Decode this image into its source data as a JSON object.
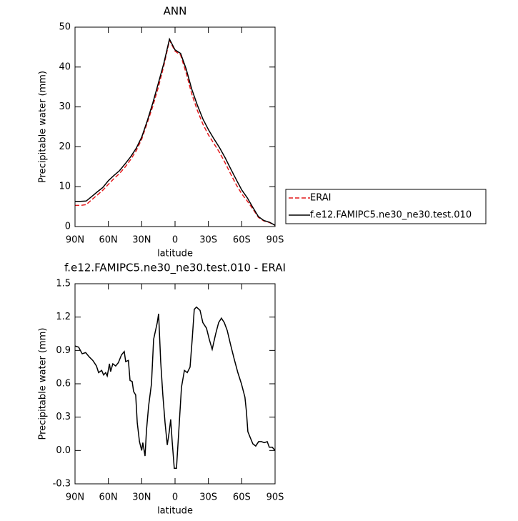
{
  "chart_data": [
    {
      "type": "line",
      "title": "ANN",
      "xlabel": "latitude",
      "ylabel": "Precipitable water (mm)",
      "x": [
        90,
        85,
        80,
        75,
        70,
        65,
        60,
        55,
        50,
        45,
        40,
        35,
        30,
        25,
        20,
        15,
        10,
        5,
        0,
        -5,
        -10,
        -15,
        -20,
        -25,
        -30,
        -35,
        -40,
        -45,
        -50,
        -55,
        -60,
        -65,
        -70,
        -75,
        -80,
        -85,
        -90
      ],
      "series": [
        {
          "name": "ERAI",
          "color": "#e41a1c",
          "style": "dashed",
          "values": [
            5.3,
            5.3,
            5.5,
            6.7,
            7.9,
            9.1,
            10.6,
            12,
            13.3,
            14.9,
            16.8,
            19,
            21.9,
            26,
            30.2,
            35,
            40.4,
            46.7,
            44,
            43,
            38.5,
            33.3,
            29.2,
            25.7,
            23,
            20.8,
            18.6,
            16,
            13.2,
            10.5,
            8.2,
            6.4,
            4.4,
            2.3,
            1.4,
            1,
            0.3
          ]
        },
        {
          "name": "f.e12.FAMIPC5.ne30_ne30.test.010",
          "color": "#000000",
          "style": "solid",
          "values": [
            6.3,
            6.3,
            6.4,
            7.5,
            8.7,
            9.8,
            11.5,
            12.8,
            14,
            15.7,
            17.5,
            19.6,
            22.4,
            26.5,
            31,
            36,
            41,
            47,
            44.3,
            43.4,
            39.5,
            34.5,
            30.5,
            27,
            24.3,
            22,
            19.8,
            17.3,
            14.5,
            11.8,
            9.2,
            7.2,
            4.8,
            2.5,
            1.5,
            1.1,
            0.3
          ]
        }
      ],
      "xlim": [
        90,
        -90
      ],
      "xticks": [
        {
          "value": 90,
          "label": "90N"
        },
        {
          "value": 60,
          "label": "60N"
        },
        {
          "value": 30,
          "label": "30N"
        },
        0,
        {
          "value": -30,
          "label": "30S"
        },
        {
          "value": -60,
          "label": "60S"
        },
        {
          "value": -90,
          "label": "90S"
        }
      ],
      "ylim": [
        0,
        50
      ],
      "yticks": [
        0,
        10,
        20,
        30,
        40,
        50
      ],
      "legend": "outside-right"
    },
    {
      "type": "line",
      "title": "f.e12.FAMIPC5.ne30_ne30.test.010 - ERAI",
      "xlabel": "latitude",
      "ylabel": "Precipitable water (mm)",
      "x": [
        90,
        86.8,
        83.6,
        80.4,
        77,
        74,
        70.7,
        68.8,
        66,
        64.3,
        62.4,
        61,
        59,
        58,
        56,
        53.4,
        51,
        48.2,
        45.7,
        44.4,
        42,
        40.5,
        38.6,
        37.3,
        35.4,
        34,
        32,
        30,
        29,
        27,
        25.7,
        23.8,
        21.2,
        19.3,
        16,
        14.8,
        12.9,
        11,
        9,
        7,
        5.2,
        3.9,
        2.6,
        0.7,
        -1.3,
        -3.2,
        -5.8,
        -8.4,
        -11,
        -13.5,
        -15.4,
        -17.3,
        -19.3,
        -22.5,
        -25,
        -28.3,
        -30.8,
        -33.4,
        -36.6,
        -39.2,
        -41.7,
        -44.3,
        -46.9,
        -50,
        -53.3,
        -56.5,
        -59.7,
        -62.9,
        -64.2,
        -65.5,
        -67.5,
        -70,
        -72.6,
        -75.2,
        -77.7,
        -80.3,
        -82.9,
        -84.8,
        -87.4,
        -90
      ],
      "series": [
        {
          "color": "#000000",
          "style": "solid",
          "values": [
            0.94,
            0.93,
            0.87,
            0.88,
            0.84,
            0.81,
            0.76,
            0.7,
            0.72,
            0.68,
            0.7,
            0.67,
            0.78,
            0.71,
            0.78,
            0.76,
            0.79,
            0.86,
            0.89,
            0.8,
            0.81,
            0.63,
            0.62,
            0.53,
            0.5,
            0.25,
            0.08,
            0,
            0.07,
            -0.05,
            0.18,
            0.4,
            0.6,
            1,
            1.15,
            1.23,
            0.8,
            0.5,
            0.25,
            0.05,
            0.17,
            0.28,
            0.08,
            -0.16,
            -0.16,
            0.15,
            0.57,
            0.72,
            0.7,
            0.75,
            1,
            1.27,
            1.29,
            1.26,
            1.15,
            1.1,
            1,
            0.91,
            1.05,
            1.15,
            1.19,
            1.15,
            1.08,
            0.95,
            0.82,
            0.7,
            0.6,
            0.48,
            0.35,
            0.17,
            0.12,
            0.06,
            0.04,
            0.08,
            0.08,
            0.07,
            0.08,
            0.03,
            0.03,
            0
          ]
        }
      ],
      "xlim": [
        90,
        -90
      ],
      "xticks": [
        {
          "value": 90,
          "label": "90N"
        },
        {
          "value": 60,
          "label": "60N"
        },
        {
          "value": 30,
          "label": "30N"
        },
        0,
        {
          "value": -30,
          "label": "30S"
        },
        {
          "value": -60,
          "label": "60S"
        },
        {
          "value": -90,
          "label": "90S"
        }
      ],
      "ylim": [
        -0.3,
        1.5
      ],
      "yticks": [
        -0.3,
        {
          "value": 0,
          "label": "0.0"
        },
        0.3,
        0.6,
        0.9,
        1.2,
        1.5
      ]
    }
  ]
}
